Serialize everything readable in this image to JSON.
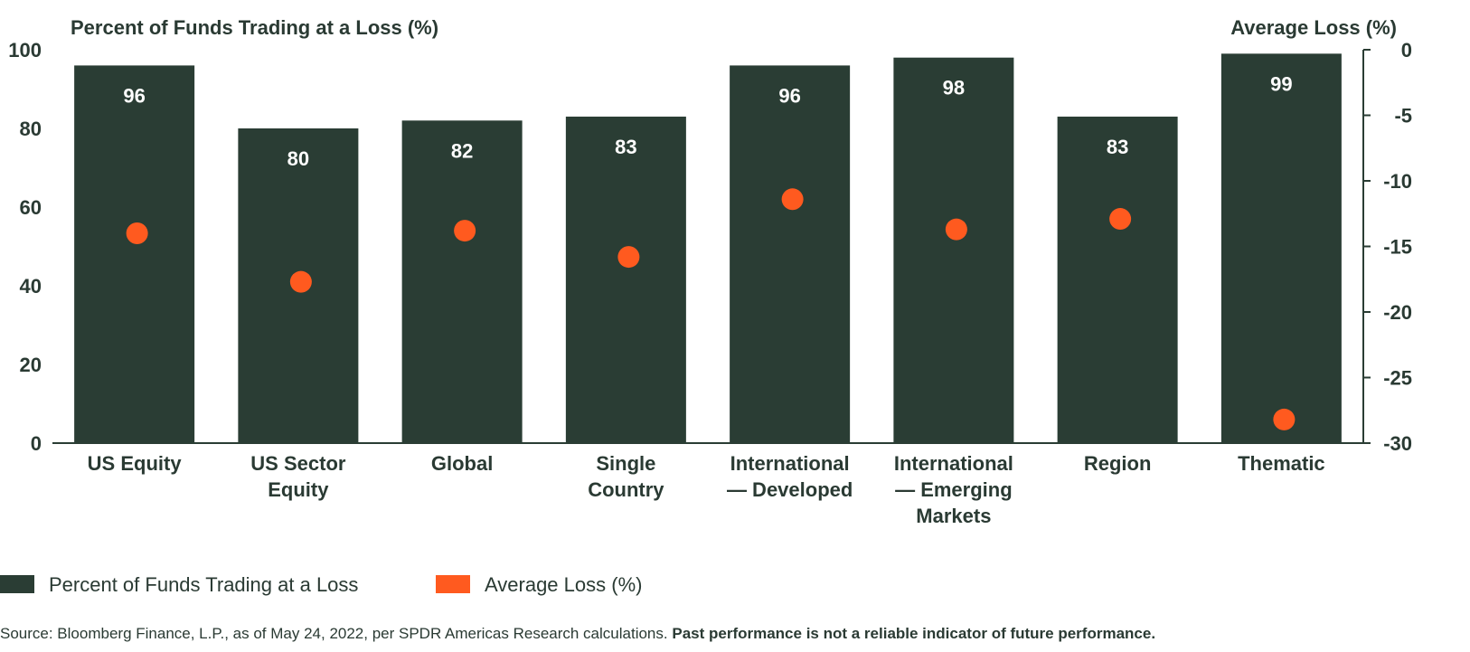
{
  "colors": {
    "bar": "#2a3d34",
    "point": "#ff5a1f",
    "axis": "#2a3d34",
    "text": "#2a3a33"
  },
  "chart_data": {
    "type": "bar",
    "categories": [
      [
        "US Equity"
      ],
      [
        "US Sector",
        "Equity"
      ],
      [
        "Global"
      ],
      [
        "Single",
        "Country"
      ],
      [
        "International",
        "— Developed"
      ],
      [
        "International",
        "— Emerging",
        "Markets"
      ],
      [
        "Region"
      ],
      [
        "Thematic"
      ]
    ],
    "series": [
      {
        "name": "Percent of Funds Trading at a Loss",
        "type": "bar",
        "axis": "left",
        "values": [
          96,
          80,
          82,
          83,
          96,
          98,
          83,
          99
        ]
      },
      {
        "name": "Average Loss (%)",
        "type": "scatter",
        "axis": "right",
        "values": [
          -14.0,
          -17.7,
          -13.8,
          -15.8,
          -11.4,
          -13.7,
          -12.9,
          -28.2
        ]
      }
    ],
    "y_left": {
      "title": "Percent of Funds Trading at a Loss (%)",
      "ylim": [
        0,
        100
      ],
      "ticks": [
        0,
        20,
        40,
        60,
        80,
        100
      ]
    },
    "y_right": {
      "title": "Average Loss (%)",
      "ylim": [
        -30,
        0
      ],
      "ticks": [
        0,
        -5,
        -10,
        -15,
        -20,
        -25,
        -30
      ]
    },
    "legend": {
      "placement": "bottom-left",
      "items": [
        {
          "label": "Percent of Funds Trading at a Loss",
          "marker": "square",
          "color": "#2a3d34"
        },
        {
          "label": "Average Loss (%)",
          "marker": "square",
          "color": "#ff5a1f"
        }
      ]
    },
    "grid": false
  },
  "source": {
    "text": "Source: Bloomberg Finance, L.P., as of May 24, 2022, per SPDR Americas Research calculations.",
    "bold_text": "Past performance is not a reliable indicator of future performance."
  }
}
